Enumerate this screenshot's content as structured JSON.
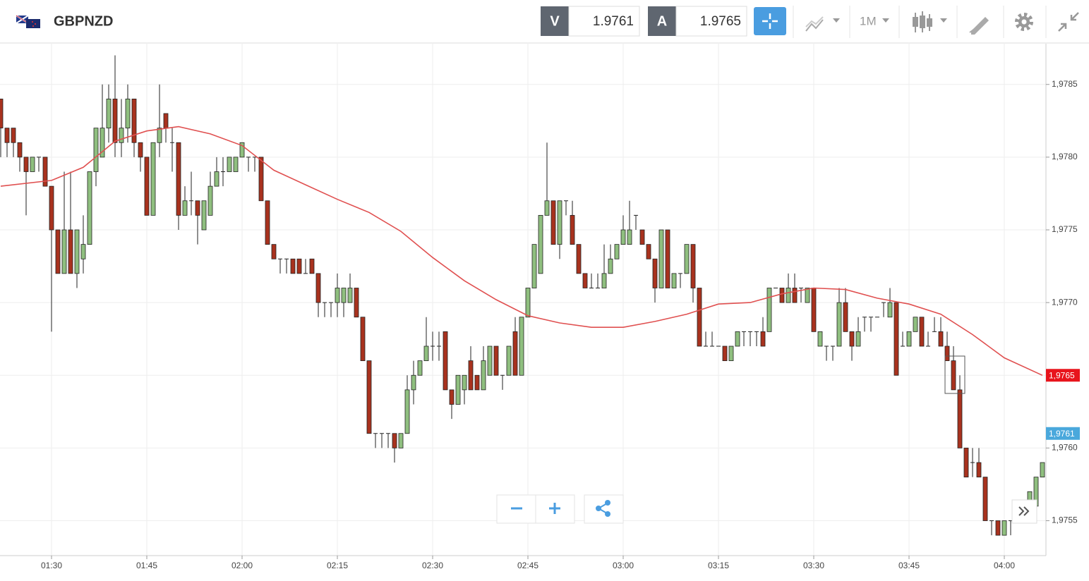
{
  "header": {
    "symbol": "GBPNZD",
    "sell_label": "V",
    "sell_price": 1.9761,
    "buy_label": "A",
    "buy_price": 1.9765,
    "timeframe": "1M"
  },
  "chart_data": {
    "type": "candlestick",
    "x": [
      "01:22",
      "01:23",
      "01:24",
      "01:25",
      "01:26",
      "01:27",
      "01:28",
      "01:29",
      "01:30",
      "01:31",
      "01:32",
      "01:33",
      "01:34",
      "01:35",
      "01:36",
      "01:37",
      "01:38",
      "01:39",
      "01:40",
      "01:41",
      "01:42",
      "01:43",
      "01:44",
      "01:45",
      "01:46",
      "01:47",
      "01:48",
      "01:49",
      "01:50",
      "01:51",
      "01:52",
      "01:53",
      "01:54",
      "01:55",
      "01:56",
      "01:57",
      "01:58",
      "01:59",
      "02:00",
      "02:01",
      "02:02",
      "02:03",
      "02:04",
      "02:05",
      "02:06",
      "02:07",
      "02:08",
      "02:09",
      "02:10",
      "02:11",
      "02:12",
      "02:13",
      "02:14",
      "02:15",
      "02:16",
      "02:17",
      "02:18",
      "02:19",
      "02:20",
      "02:21",
      "02:22",
      "02:23",
      "02:24",
      "02:25",
      "02:26",
      "02:27",
      "02:28",
      "02:29",
      "02:30",
      "02:31",
      "02:32",
      "02:33",
      "02:34",
      "02:35",
      "02:36",
      "02:37",
      "02:38",
      "02:39",
      "02:40",
      "02:41",
      "02:42",
      "02:43",
      "02:44",
      "02:45",
      "02:46",
      "02:47",
      "02:48",
      "02:49",
      "02:50",
      "02:51",
      "02:52",
      "02:53",
      "02:54",
      "02:55",
      "02:56",
      "02:57",
      "02:58",
      "02:59",
      "03:00",
      "03:01",
      "03:02",
      "03:03",
      "03:04",
      "03:05",
      "03:06",
      "03:07",
      "03:08",
      "03:09",
      "03:10",
      "03:11",
      "03:12",
      "03:13",
      "03:14",
      "03:15",
      "03:16",
      "03:17",
      "03:18",
      "03:19",
      "03:20",
      "03:21",
      "03:22",
      "03:23",
      "03:24",
      "03:25",
      "03:26",
      "03:27",
      "03:28",
      "03:29",
      "03:30",
      "03:31",
      "03:32",
      "03:33",
      "03:34",
      "03:35",
      "03:36",
      "03:37",
      "03:38",
      "03:39",
      "03:40",
      "03:41",
      "03:42",
      "03:43",
      "03:44",
      "03:45",
      "03:46",
      "03:47",
      "03:48",
      "03:49",
      "03:50",
      "03:51",
      "03:52",
      "03:53",
      "03:54",
      "03:55",
      "03:56",
      "03:57",
      "03:58",
      "03:59",
      "04:00",
      "04:01",
      "04:02",
      "04:03",
      "04:04",
      "04:05",
      "04:06"
    ],
    "open": [
      1.9784,
      1.9782,
      1.9782,
      1.9781,
      1.978,
      1.9779,
      1.978,
      1.978,
      1.9778,
      1.9775,
      1.9772,
      1.9775,
      1.9772,
      1.9773,
      1.9774,
      1.9779,
      1.978,
      1.9782,
      1.9784,
      1.9781,
      1.9782,
      1.9784,
      1.9781,
      1.978,
      1.9776,
      1.9781,
      1.9783,
      1.9781,
      1.9781,
      1.9776,
      1.9777,
      1.9777,
      1.9775,
      1.9776,
      1.9778,
      1.9779,
      1.9779,
      1.9779,
      1.978,
      1.978,
      1.978,
      1.978,
      1.9777,
      1.9774,
      1.9773,
      1.9773,
      1.9773,
      1.9773,
      1.9772,
      1.9773,
      1.9772,
      1.977,
      1.977,
      1.977,
      1.977,
      1.977,
      1.9771,
      1.9769,
      1.9766,
      1.9761,
      1.9761,
      1.9761,
      1.9761,
      1.976,
      1.9761,
      1.9764,
      1.9765,
      1.9766,
      1.9767,
      1.9767,
      1.9768,
      1.9764,
      1.9763,
      1.9764,
      1.9766,
      1.9765,
      1.9764,
      1.9765,
      1.9767,
      1.9765,
      1.9765,
      1.9768,
      1.9765,
      1.9769,
      1.9771,
      1.9772,
      1.9776,
      1.9777,
      1.9774,
      1.9777,
      1.9776,
      1.9774,
      1.9772,
      1.9771,
      1.9771,
      1.9771,
      1.9772,
      1.9773,
      1.9774,
      1.9774,
      1.9776,
      1.9775,
      1.9774,
      1.9773,
      1.9771,
      1.9775,
      1.9771,
      1.9772,
      1.9772,
      1.9774,
      1.9771,
      1.9767,
      1.9767,
      1.9767,
      1.9767,
      1.9766,
      1.9767,
      1.9768,
      1.9768,
      1.9768,
      1.9768,
      1.9768,
      1.9771,
      1.9771,
      1.977,
      1.9771,
      1.9771,
      1.977,
      1.9771,
      1.9767,
      1.9767,
      1.9767,
      1.9767,
      1.977,
      1.9768,
      1.9767,
      1.9769,
      1.9769,
      1.9769,
      1.977,
      1.9769,
      1.977,
      1.9767,
      1.9767,
      1.9768,
      1.9769,
      1.9767,
      1.9768,
      1.9768,
      1.9767,
      1.9766,
      1.9764,
      1.976,
      1.9759,
      1.9759,
      1.9758,
      1.9755,
      1.9755,
      1.9754,
      1.9755,
      1.9755,
      1.9756,
      1.9756,
      1.9756,
      1.9758
    ],
    "high": [
      1.9784,
      1.9782,
      1.9782,
      1.9781,
      1.978,
      1.978,
      1.978,
      1.978,
      1.9778,
      1.9775,
      1.9779,
      1.9779,
      1.9775,
      1.9776,
      1.9779,
      1.9782,
      1.9785,
      1.9785,
      1.9787,
      1.9784,
      1.9785,
      1.9784,
      1.9781,
      1.978,
      1.9781,
      1.9785,
      1.9783,
      1.9782,
      1.9781,
      1.9778,
      1.9779,
      1.9777,
      1.9777,
      1.9779,
      1.978,
      1.978,
      1.978,
      1.978,
      1.9781,
      1.978,
      1.978,
      1.978,
      1.9777,
      1.9774,
      1.9773,
      1.9773,
      1.9773,
      1.9773,
      1.9773,
      1.9773,
      1.9772,
      1.977,
      1.977,
      1.9772,
      1.9771,
      1.9772,
      1.9771,
      1.9769,
      1.9766,
      1.9761,
      1.9761,
      1.9761,
      1.9761,
      1.9761,
      1.9765,
      1.9766,
      1.9766,
      1.9769,
      1.9768,
      1.9768,
      1.9768,
      1.9764,
      1.9765,
      1.9765,
      1.9767,
      1.9765,
      1.9767,
      1.9767,
      1.9767,
      1.9765,
      1.9767,
      1.9769,
      1.9769,
      1.9771,
      1.9774,
      1.9776,
      1.9781,
      1.9777,
      1.9777,
      1.9777,
      1.9777,
      1.9774,
      1.9772,
      1.9772,
      1.9772,
      1.9774,
      1.9774,
      1.9774,
      1.9776,
      1.9777,
      1.9776,
      1.9775,
      1.9774,
      1.9773,
      1.9775,
      1.9775,
      1.9772,
      1.9772,
      1.9774,
      1.9774,
      1.9771,
      1.9768,
      1.9768,
      1.9767,
      1.9767,
      1.9767,
      1.9768,
      1.9768,
      1.9768,
      1.9768,
      1.9769,
      1.9771,
      1.9771,
      1.9771,
      1.9772,
      1.9772,
      1.9771,
      1.9771,
      1.9771,
      1.9768,
      1.9767,
      1.9767,
      1.9771,
      1.9771,
      1.9768,
      1.9769,
      1.9769,
      1.9769,
      1.9769,
      1.977,
      1.9771,
      1.977,
      1.9768,
      1.9768,
      1.9769,
      1.9769,
      1.9768,
      1.9769,
      1.9769,
      1.9768,
      1.9767,
      1.9765,
      1.976,
      1.976,
      1.976,
      1.9758,
      1.9755,
      1.9755,
      1.9755,
      1.9755,
      1.9755,
      1.9756,
      1.9757,
      1.9758,
      1.9759
    ],
    "low": [
      1.978,
      1.978,
      1.978,
      1.9779,
      1.9776,
      1.9779,
      1.9779,
      1.9778,
      1.9768,
      1.9772,
      1.9772,
      1.9772,
      1.9771,
      1.9772,
      1.9774,
      1.9778,
      1.978,
      1.9781,
      1.978,
      1.978,
      1.9781,
      1.978,
      1.9779,
      1.9776,
      1.9776,
      1.978,
      1.9781,
      1.9779,
      1.9775,
      1.9776,
      1.9776,
      1.9774,
      1.9775,
      1.9776,
      1.9778,
      1.9778,
      1.9779,
      1.9779,
      1.978,
      1.9779,
      1.9779,
      1.9777,
      1.9774,
      1.9773,
      1.9772,
      1.9772,
      1.9772,
      1.9772,
      1.9772,
      1.9772,
      1.9769,
      1.9769,
      1.9769,
      1.9769,
      1.9769,
      1.977,
      1.9769,
      1.9766,
      1.9761,
      1.976,
      1.976,
      1.976,
      1.9759,
      1.976,
      1.9761,
      1.9763,
      1.9765,
      1.9766,
      1.9766,
      1.9766,
      1.9764,
      1.9762,
      1.9763,
      1.9763,
      1.9764,
      1.9764,
      1.9764,
      1.9765,
      1.9765,
      1.9764,
      1.9765,
      1.9765,
      1.9765,
      1.9769,
      1.9771,
      1.9772,
      1.9776,
      1.9774,
      1.9773,
      1.9776,
      1.9774,
      1.9772,
      1.9771,
      1.9771,
      1.9771,
      1.9771,
      1.9772,
      1.9773,
      1.9774,
      1.9774,
      1.9775,
      1.9774,
      1.9773,
      1.977,
      1.9771,
      1.9771,
      1.9771,
      1.9771,
      1.9772,
      1.977,
      1.9767,
      1.9767,
      1.9767,
      1.9767,
      1.9766,
      1.9766,
      1.9767,
      1.9767,
      1.9767,
      1.9767,
      1.9767,
      1.9768,
      1.9771,
      1.977,
      1.977,
      1.977,
      1.977,
      1.977,
      1.9768,
      1.9767,
      1.9766,
      1.9766,
      1.9767,
      1.9768,
      1.9766,
      1.9767,
      1.9768,
      1.9768,
      1.9769,
      1.9769,
      1.9769,
      1.9765,
      1.9767,
      1.9767,
      1.9768,
      1.9767,
      1.9767,
      1.9768,
      1.9767,
      1.9766,
      1.9764,
      1.976,
      1.9758,
      1.9758,
      1.9758,
      1.9755,
      1.9754,
      1.9754,
      1.9754,
      1.9754,
      1.9755,
      1.9755,
      1.9756,
      1.9756,
      1.9758
    ],
    "close": [
      1.9782,
      1.9781,
      1.9781,
      1.978,
      1.9779,
      1.978,
      1.978,
      1.9778,
      1.9775,
      1.9772,
      1.9775,
      1.9772,
      1.9775,
      1.9774,
      1.9779,
      1.9782,
      1.9782,
      1.9784,
      1.9781,
      1.9782,
      1.9784,
      1.9781,
      1.978,
      1.9776,
      1.9781,
      1.9782,
      1.9782,
      1.9781,
      1.9776,
      1.9777,
      1.9777,
      1.9776,
      1.9777,
      1.9778,
      1.9779,
      1.9779,
      1.978,
      1.978,
      1.9781,
      1.978,
      1.978,
      1.9777,
      1.9774,
      1.9773,
      1.9773,
      1.9773,
      1.9772,
      1.9772,
      1.9772,
      1.9772,
      1.977,
      1.977,
      1.977,
      1.9771,
      1.9771,
      1.9771,
      1.9769,
      1.9766,
      1.9761,
      1.9761,
      1.9761,
      1.9761,
      1.976,
      1.9761,
      1.9764,
      1.9765,
      1.9766,
      1.9767,
      1.9767,
      1.9767,
      1.9764,
      1.9763,
      1.9765,
      1.9765,
      1.9764,
      1.9764,
      1.9766,
      1.9767,
      1.9765,
      1.9765,
      1.9767,
      1.9765,
      1.9769,
      1.9771,
      1.9774,
      1.9776,
      1.9777,
      1.9774,
      1.9777,
      1.9777,
      1.9774,
      1.9772,
      1.9771,
      1.9771,
      1.9771,
      1.9772,
      1.9773,
      1.9774,
      1.9775,
      1.9775,
      1.9776,
      1.9774,
      1.9773,
      1.9771,
      1.9775,
      1.9771,
      1.9772,
      1.9772,
      1.9774,
      1.9771,
      1.9767,
      1.9767,
      1.9767,
      1.9767,
      1.9766,
      1.9767,
      1.9768,
      1.9768,
      1.9768,
      1.9768,
      1.9767,
      1.9771,
      1.9771,
      1.977,
      1.9771,
      1.977,
      1.9771,
      1.9771,
      1.9768,
      1.9768,
      1.9767,
      1.9767,
      1.977,
      1.9768,
      1.9767,
      1.9768,
      1.9769,
      1.9769,
      1.9769,
      1.977,
      1.977,
      1.9765,
      1.9767,
      1.9768,
      1.9769,
      1.9767,
      1.9767,
      1.9768,
      1.9767,
      1.9766,
      1.9764,
      1.976,
      1.9758,
      1.9759,
      1.9758,
      1.9755,
      1.9755,
      1.9754,
      1.9755,
      1.9755,
      1.9755,
      1.9756,
      1.9757,
      1.9758,
      1.9759
    ],
    "up_color": "#8fbf7f",
    "down_color": "#a8321e",
    "moving_average": {
      "color": "#e05050",
      "x": [
        "01:22",
        "01:30",
        "01:35",
        "01:40",
        "01:45",
        "01:50",
        "01:55",
        "02:00",
        "02:05",
        "02:10",
        "02:15",
        "02:20",
        "02:25",
        "02:30",
        "02:35",
        "02:40",
        "02:45",
        "02:50",
        "02:55",
        "03:00",
        "03:05",
        "03:10",
        "03:15",
        "03:20",
        "03:25",
        "03:30",
        "03:35",
        "03:40",
        "03:45",
        "03:50",
        "03:55",
        "04:00",
        "04:06"
      ],
      "values": [
        1.9778,
        1.97784,
        1.97793,
        1.97811,
        1.97818,
        1.97821,
        1.97816,
        1.97808,
        1.97791,
        1.97781,
        1.97771,
        1.97762,
        1.97749,
        1.97731,
        1.97715,
        1.97702,
        1.97691,
        1.97686,
        1.97683,
        1.97683,
        1.97687,
        1.97692,
        1.97699,
        1.977,
        1.97706,
        1.9771,
        1.97709,
        1.97703,
        1.97699,
        1.97692,
        1.97678,
        1.97662,
        1.9765
      ]
    },
    "price_tags": [
      {
        "value": 1.9765,
        "label": "1,9765",
        "color": "#e8141c"
      },
      {
        "value": 1.9761,
        "label": "1,9761",
        "color": "#4aa8dc"
      }
    ],
    "xlim": [
      "01:22",
      "04:07"
    ],
    "xticks": [
      "01:30",
      "01:45",
      "02:00",
      "02:15",
      "02:30",
      "02:45",
      "03:00",
      "03:15",
      "03:30",
      "03:45",
      "04:00"
    ],
    "ylim": [
      1.97526,
      1.97878
    ],
    "yticks": [
      {
        "value": 1.9755,
        "label": "1,9755"
      },
      {
        "value": 1.976,
        "label": "1,9760"
      },
      {
        "value": 1.9765,
        "label": "1,9765"
      },
      {
        "value": 1.977,
        "label": "1,9770"
      },
      {
        "value": 1.9775,
        "label": "1,9775"
      },
      {
        "value": 1.978,
        "label": "1,9780"
      },
      {
        "value": 1.9785,
        "label": "1,9785"
      }
    ],
    "grid": true
  }
}
